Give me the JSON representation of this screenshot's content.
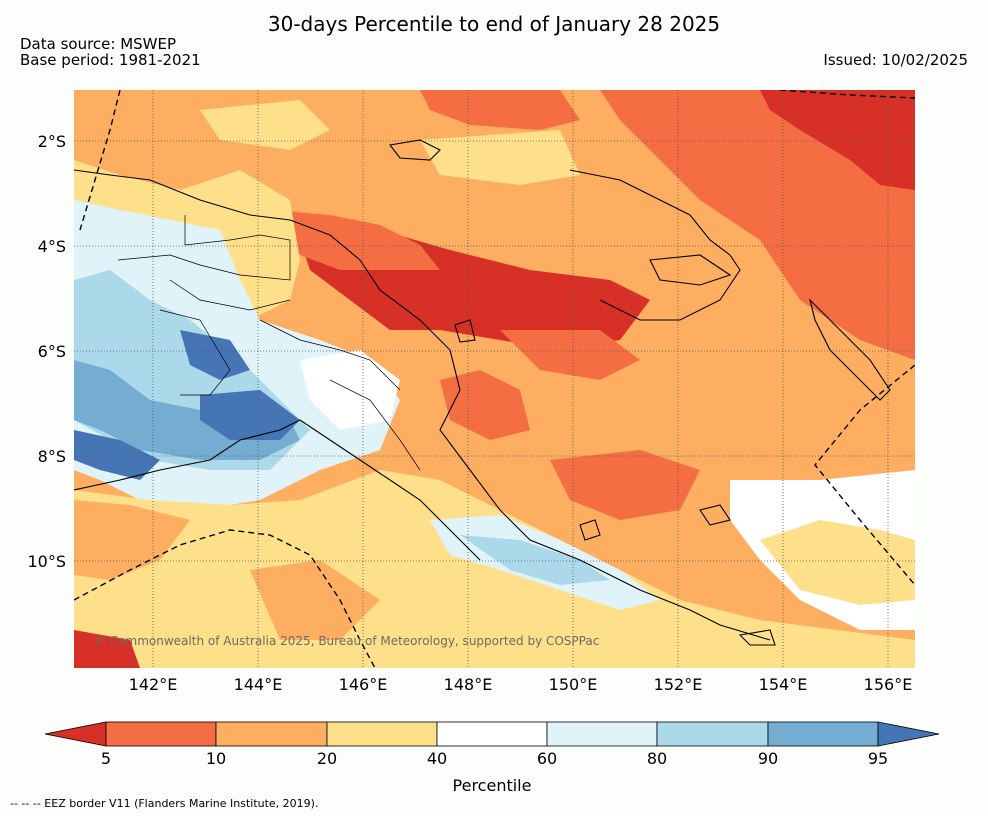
{
  "title": "30-days Percentile to end of January 28 2025",
  "data_source": "Data source: MSWEP",
  "base_period": "Base period: 1981-2021",
  "issued": "Issued: 10/02/2025",
  "copyright": "© Commonwealth of Australia 2025, Bureau of Meteorology, supported by COSPPac",
  "lat_ticks": [
    "2°S",
    "4°S",
    "6°S",
    "8°S",
    "10°S"
  ],
  "lon_ticks": [
    "142°E",
    "144°E",
    "146°E",
    "148°E",
    "150°E",
    "152°E",
    "154°E",
    "156°E"
  ],
  "colorbar": {
    "label": "Percentile",
    "ticks": [
      "5",
      "10",
      "20",
      "40",
      "60",
      "80",
      "90",
      "95"
    ],
    "colors": {
      "below5": "#d73027",
      "c5_10": "#f46d43",
      "c10_20": "#fdae61",
      "c20_40": "#fee08b",
      "c40_60": "#ffffff",
      "c60_80": "#e0f3f8",
      "c80_90": "#abd9e9",
      "c90_95": "#74add1",
      "above95": "#4575b4"
    }
  },
  "footnote": "--  --  -- EEZ border V11 (Flanders Marine Institute, 2019)."
}
